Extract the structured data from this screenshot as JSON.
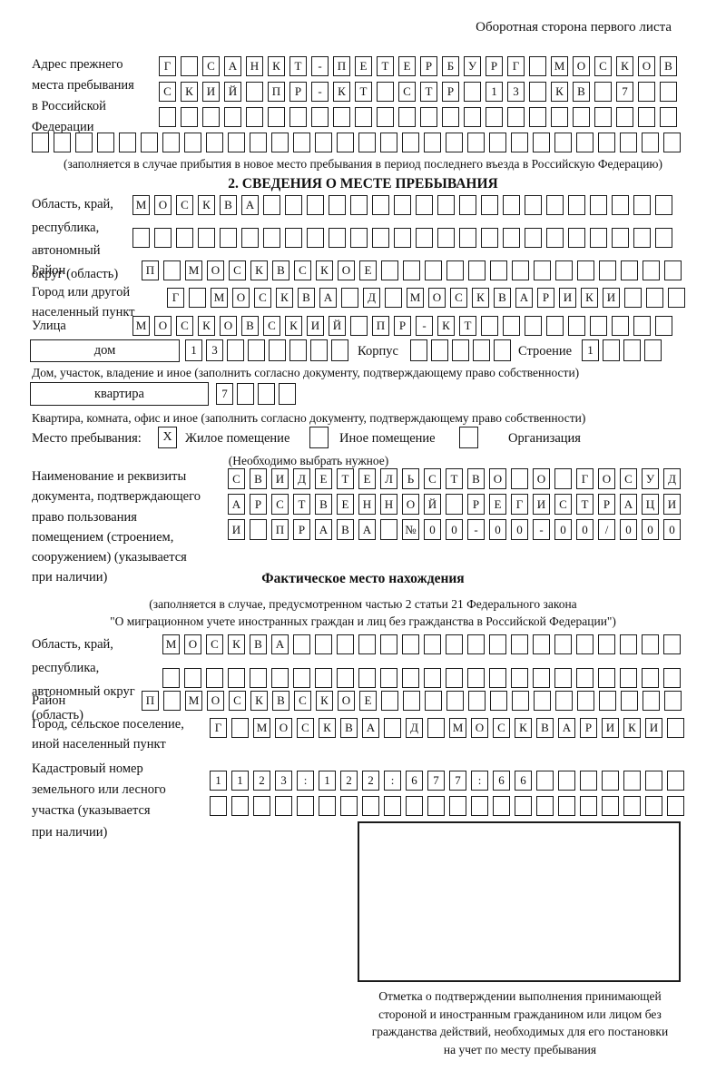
{
  "page": {
    "header_note": "Оборотная сторона первого листа"
  },
  "prev_address": {
    "label": "Адрес прежнего\nместа пребывания\nв Российской\nФедерации",
    "row1": "Г САНКТ-ПЕТЕРБУРГ МОСКОВ",
    "row2": "СКИЙ ПР-КТ СТР 13 КВ 7  ",
    "row3": "                        ",
    "row4": "                              ",
    "caption": "(заполняется в случае прибытия в новое место пребывания в период последнего въезда в Российскую Федерацию)"
  },
  "section2": {
    "title": "2. СВЕДЕНИЯ О МЕСТЕ ПРЕБЫВАНИЯ",
    "oblast": {
      "label": "Область, край,\nреспублика,\nавтономный\nокруг (область)",
      "row1": "МОСКВА                   ",
      "row2": "                         "
    },
    "rayon": {
      "label": "Район",
      "row": "П МОСКВСКОЕ              "
    },
    "gorod": {
      "label": "Город или другой\nнаселенный пункт",
      "row": "Г МОСКВА Д МОСКВАРИКИ   "
    },
    "ulitsa": {
      "label": "Улица",
      "row": "МОСКОВСКИЙ ПР-КТ         "
    },
    "dom": {
      "box_label": "дом",
      "cells": "13      ",
      "korpus_label": "Корпус",
      "korpus_cells": "     ",
      "stroenie_label": "Строение",
      "stroenie_cells": "1   ",
      "caption": "Дом, участок, владение и иное (заполнить согласно документу, подтверждающему право собственности)"
    },
    "kvartira": {
      "box_label": "квартира",
      "cells": "7   ",
      "caption": "Квартира, комната, офис и иное (заполнить согласно документу, подтверждающему право собственности)"
    },
    "mesto": {
      "label": "Место пребывания:",
      "checked_mark": "X",
      "option1": "Жилое помещение",
      "option2": "Иное помещение",
      "option3": "Организация",
      "caption": "(Необходимо выбрать нужное)"
    },
    "dokument": {
      "label": "Наименование и реквизиты\nдокумента, подтверждающего\nправо пользования\nпомещением (строением,\nсооружением) (указывается\nпри наличии)",
      "row1": "СВИДЕТЕЛЬСТВО О ГОСУД",
      "row2": "АРСТВЕННОЙ РЕГИСТРАЦИ",
      "row3": "И ПРАВА №00-00-00/000"
    }
  },
  "fact": {
    "title": "Фактическое место нахождения",
    "caption": "(заполняется в случае, предусмотренном частью 2 статьи 21 Федерального закона\n\"О миграционном учете иностранных граждан и лиц без гражданства в Российской Федерации\")",
    "oblast": {
      "label": "Область, край,\nреспублика,\nавтономный округ\n(область)",
      "row1": "МОСКВА                  ",
      "row2": "                        "
    },
    "rayon": {
      "label": "Район",
      "row": "П МОСКВСКОЕ              "
    },
    "gorod": {
      "label": "Город, сельское поселение,\nиной населенный пункт",
      "row": "Г МОСКВА Д МОСКВАРИКИ "
    },
    "kadastr": {
      "label": "Кадастровый номер\nземельного или лесного\nучастка (указывается\nпри наличии)",
      "row1": "1123:122:677:66       ",
      "row2": "                      "
    },
    "otmetka_caption": "Отметка о подтверждении выполнения принимающей\nстороной и иностранным гражданином или лицом без\nгражданства действий, необходимых для его постановки\nна учет по месту пребывания"
  }
}
